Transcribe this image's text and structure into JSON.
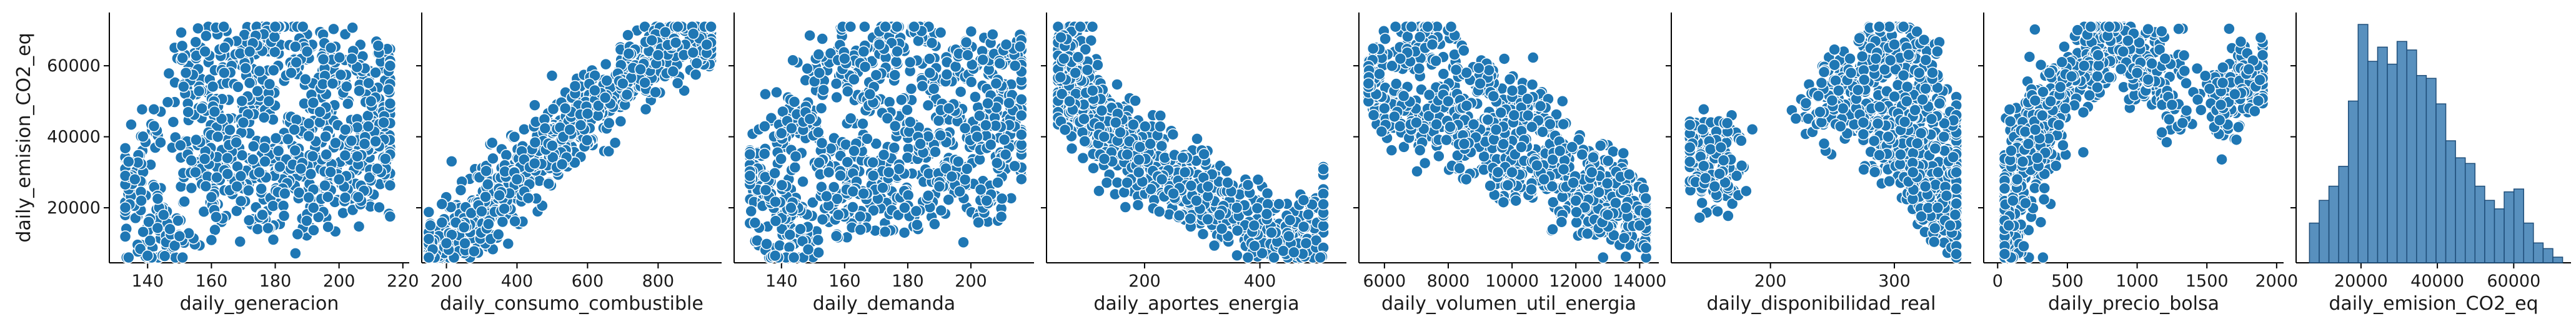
{
  "figure": {
    "shared_ylabel": "daily_emision_CO2_eq",
    "point_color": "#1f77b4",
    "point_edge": "#ffffff",
    "hist_color": "#3b7db3"
  },
  "chart_data": [
    {
      "type": "scatter",
      "xlabel": "daily_generacion",
      "ylabel": "daily_emision_CO2_eq",
      "xticks": [
        "140",
        "160",
        "180",
        "200",
        "220"
      ],
      "yticks": [
        "20000",
        "40000",
        "60000"
      ],
      "xlim": [
        128,
        222
      ],
      "ylim": [
        4500,
        75000
      ],
      "trend": "weak positive",
      "x_range": [
        133,
        216
      ],
      "y_range": [
        6000,
        71000
      ],
      "points": [
        [
          133,
          29000
        ],
        [
          136,
          28000
        ],
        [
          138,
          22000
        ],
        [
          140,
          6500
        ],
        [
          142,
          43000
        ],
        [
          145,
          18000
        ],
        [
          147,
          14000
        ],
        [
          150,
          12000
        ],
        [
          152,
          58000
        ],
        [
          155,
          30000
        ],
        [
          157,
          48000
        ],
        [
          158,
          64000
        ],
        [
          160,
          23000
        ],
        [
          162,
          40000
        ],
        [
          164,
          58000
        ],
        [
          165,
          34000
        ],
        [
          168,
          26000
        ],
        [
          170,
          44000
        ],
        [
          172,
          64000
        ],
        [
          175,
          30000
        ],
        [
          176,
          18000
        ],
        [
          178,
          50000
        ],
        [
          180,
          71000
        ],
        [
          181,
          36000
        ],
        [
          183,
          24000
        ],
        [
          185,
          58000
        ],
        [
          186,
          42000
        ],
        [
          188,
          31000
        ],
        [
          190,
          64000
        ],
        [
          192,
          20000
        ],
        [
          194,
          47000
        ],
        [
          196,
          35000
        ],
        [
          198,
          55000
        ],
        [
          200,
          28000
        ],
        [
          202,
          42000
        ],
        [
          204,
          62000
        ],
        [
          206,
          23000
        ],
        [
          208,
          38000
        ],
        [
          210,
          50000
        ],
        [
          212,
          31000
        ],
        [
          214,
          44000
        ],
        [
          216,
          60000
        ]
      ]
    },
    {
      "type": "scatter",
      "xlabel": "daily_consumo_combustible",
      "ylabel": "daily_emision_CO2_eq",
      "xticks": [
        "200",
        "400",
        "600",
        "800"
      ],
      "xlim": [
        130,
        980
      ],
      "ylim": [
        4500,
        75000
      ],
      "trend": "strong linear positive",
      "x_range": [
        150,
        950
      ],
      "y_range": [
        6000,
        71000
      ],
      "points": [
        [
          150,
          6000
        ],
        [
          200,
          10000
        ],
        [
          250,
          14500
        ],
        [
          300,
          19000
        ],
        [
          350,
          23500
        ],
        [
          400,
          28000
        ],
        [
          450,
          32500
        ],
        [
          500,
          37500
        ],
        [
          550,
          42000
        ],
        [
          600,
          46500
        ],
        [
          650,
          51000
        ],
        [
          700,
          55000
        ],
        [
          750,
          59000
        ],
        [
          800,
          63000
        ],
        [
          850,
          66500
        ],
        [
          900,
          69000
        ],
        [
          950,
          71000
        ]
      ]
    },
    {
      "type": "scatter",
      "xlabel": "daily_demanda",
      "ylabel": "daily_emision_CO2_eq",
      "xticks": [
        "140",
        "160",
        "180",
        "200"
      ],
      "xlim": [
        125,
        220
      ],
      "ylim": [
        4500,
        75000
      ],
      "trend": "weak positive",
      "x_range": [
        130,
        216
      ],
      "y_range": [
        6000,
        71000
      ],
      "points": [
        [
          130,
          29000
        ],
        [
          135,
          25000
        ],
        [
          138,
          6500
        ],
        [
          140,
          41000
        ],
        [
          143,
          20000
        ],
        [
          146,
          14000
        ],
        [
          149,
          45000
        ],
        [
          152,
          58000
        ],
        [
          155,
          30000
        ],
        [
          158,
          18000
        ],
        [
          160,
          62000
        ],
        [
          163,
          36000
        ],
        [
          166,
          24000
        ],
        [
          168,
          52000
        ],
        [
          171,
          66000
        ],
        [
          174,
          30000
        ],
        [
          176,
          43000
        ],
        [
          179,
          20000
        ],
        [
          182,
          71000
        ],
        [
          184,
          38000
        ],
        [
          187,
          58000
        ],
        [
          190,
          26000
        ],
        [
          193,
          48000
        ],
        [
          196,
          33000
        ],
        [
          199,
          63000
        ],
        [
          202,
          40000
        ],
        [
          205,
          22000
        ],
        [
          208,
          55000
        ],
        [
          211,
          35000
        ],
        [
          214,
          60000
        ],
        [
          216,
          46000
        ]
      ]
    },
    {
      "type": "scatter",
      "xlabel": "daily_aportes_energia",
      "ylabel": "daily_emision_CO2_eq",
      "xticks": [
        "200",
        "400"
      ],
      "xlim": [
        30,
        550
      ],
      "ylim": [
        4500,
        75000
      ],
      "trend": "negative",
      "x_range": [
        50,
        510
      ],
      "y_range": [
        6000,
        71000
      ],
      "points": [
        [
          55,
          68000
        ],
        [
          60,
          62000
        ],
        [
          70,
          50000
        ],
        [
          80,
          58000
        ],
        [
          95,
          45000
        ],
        [
          110,
          53000
        ],
        [
          130,
          40000
        ],
        [
          150,
          44000
        ],
        [
          170,
          35000
        ],
        [
          190,
          30000
        ],
        [
          210,
          38000
        ],
        [
          230,
          28000
        ],
        [
          250,
          24000
        ],
        [
          270,
          30000
        ],
        [
          290,
          22000
        ],
        [
          310,
          26000
        ],
        [
          330,
          18000
        ],
        [
          360,
          20000
        ],
        [
          390,
          15000
        ],
        [
          420,
          13000
        ],
        [
          450,
          12000
        ],
        [
          480,
          10000
        ],
        [
          510,
          21000
        ]
      ]
    },
    {
      "type": "scatter",
      "xlabel": "daily_volumen_util_energia",
      "ylabel": "daily_emision_CO2_eq",
      "xticks": [
        "6000",
        "8000",
        "10000",
        "12000",
        "14000"
      ],
      "xlim": [
        5200,
        14600
      ],
      "ylim": [
        4500,
        75000
      ],
      "trend": "negative",
      "x_range": [
        5500,
        14200
      ],
      "y_range": [
        6000,
        71000
      ],
      "points": [
        [
          5500,
          55000
        ],
        [
          6000,
          48000
        ],
        [
          6500,
          62000
        ],
        [
          7000,
          44000
        ],
        [
          7500,
          66000
        ],
        [
          8000,
          50000
        ],
        [
          8500,
          38000
        ],
        [
          9000,
          55000
        ],
        [
          9500,
          42000
        ],
        [
          10000,
          30000
        ],
        [
          10500,
          46000
        ],
        [
          11000,
          28000
        ],
        [
          11500,
          36000
        ],
        [
          12000,
          22000
        ],
        [
          12500,
          30000
        ],
        [
          13000,
          18000
        ],
        [
          13500,
          25000
        ],
        [
          14000,
          15000
        ]
      ]
    },
    {
      "type": "scatter",
      "xlabel": "daily_disponibilidad_real",
      "ylabel": "daily_emision_CO2_eq",
      "xticks": [
        "200",
        "300"
      ],
      "xlim": [
        120,
        362
      ],
      "ylim": [
        4500,
        75000
      ],
      "trend": "cluster near 250-350",
      "x_range": [
        135,
        350
      ],
      "y_range": [
        6000,
        71000
      ],
      "points": [
        [
          135,
          37000
        ],
        [
          155,
          26000
        ],
        [
          160,
          37000
        ],
        [
          240,
          47000
        ],
        [
          255,
          53000
        ],
        [
          265,
          58000
        ],
        [
          275,
          44000
        ],
        [
          285,
          62000
        ],
        [
          295,
          40000
        ],
        [
          300,
          66000
        ],
        [
          305,
          35000
        ],
        [
          310,
          50000
        ],
        [
          315,
          30000
        ],
        [
          320,
          58000
        ],
        [
          325,
          26000
        ],
        [
          330,
          45000
        ],
        [
          335,
          20000
        ],
        [
          340,
          40000
        ],
        [
          345,
          15000
        ],
        [
          350,
          30000
        ]
      ]
    },
    {
      "type": "scatter",
      "xlabel": "daily_precio_bolsa",
      "ylabel": "daily_emision_CO2_eq",
      "xticks": [
        "0",
        "500",
        "1000",
        "1500",
        "2000"
      ],
      "xlim": [
        -100,
        2050
      ],
      "ylim": [
        4500,
        75000
      ],
      "trend": "positive, saturating",
      "x_range": [
        50,
        1900
      ],
      "y_range": [
        6000,
        71000
      ],
      "points": [
        [
          50,
          7000
        ],
        [
          80,
          15000
        ],
        [
          110,
          22000
        ],
        [
          140,
          28000
        ],
        [
          180,
          33000
        ],
        [
          220,
          38000
        ],
        [
          270,
          42000
        ],
        [
          320,
          46000
        ],
        [
          380,
          50000
        ],
        [
          450,
          54000
        ],
        [
          530,
          57000
        ],
        [
          620,
          60000
        ],
        [
          720,
          63000
        ],
        [
          800,
          71000
        ],
        [
          900,
          64000
        ],
        [
          1000,
          58000
        ],
        [
          1200,
          62000
        ],
        [
          1250,
          49000
        ],
        [
          1600,
          49000
        ],
        [
          1700,
          52000
        ],
        [
          1800,
          59000
        ],
        [
          1880,
          56000
        ]
      ]
    },
    {
      "type": "histogram",
      "xlabel": "daily_emision_CO2_eq",
      "xticks": [
        "20000",
        "40000",
        "60000"
      ],
      "xlim": [
        3000,
        75000
      ],
      "bin_edges": [
        6500,
        9050,
        11600,
        14150,
        16700,
        19250,
        21800,
        24350,
        26900,
        29450,
        32000,
        34550,
        37100,
        39650,
        42200,
        44750,
        47300,
        49850,
        52400,
        54950,
        57500,
        60050,
        62600,
        65150,
        67700,
        70250,
        72800
      ],
      "values": [
        70,
        110,
        135,
        170,
        285,
        420,
        355,
        380,
        350,
        390,
        375,
        330,
        325,
        280,
        215,
        185,
        175,
        135,
        110,
        95,
        125,
        130,
        70,
        35,
        25,
        10
      ]
    }
  ]
}
